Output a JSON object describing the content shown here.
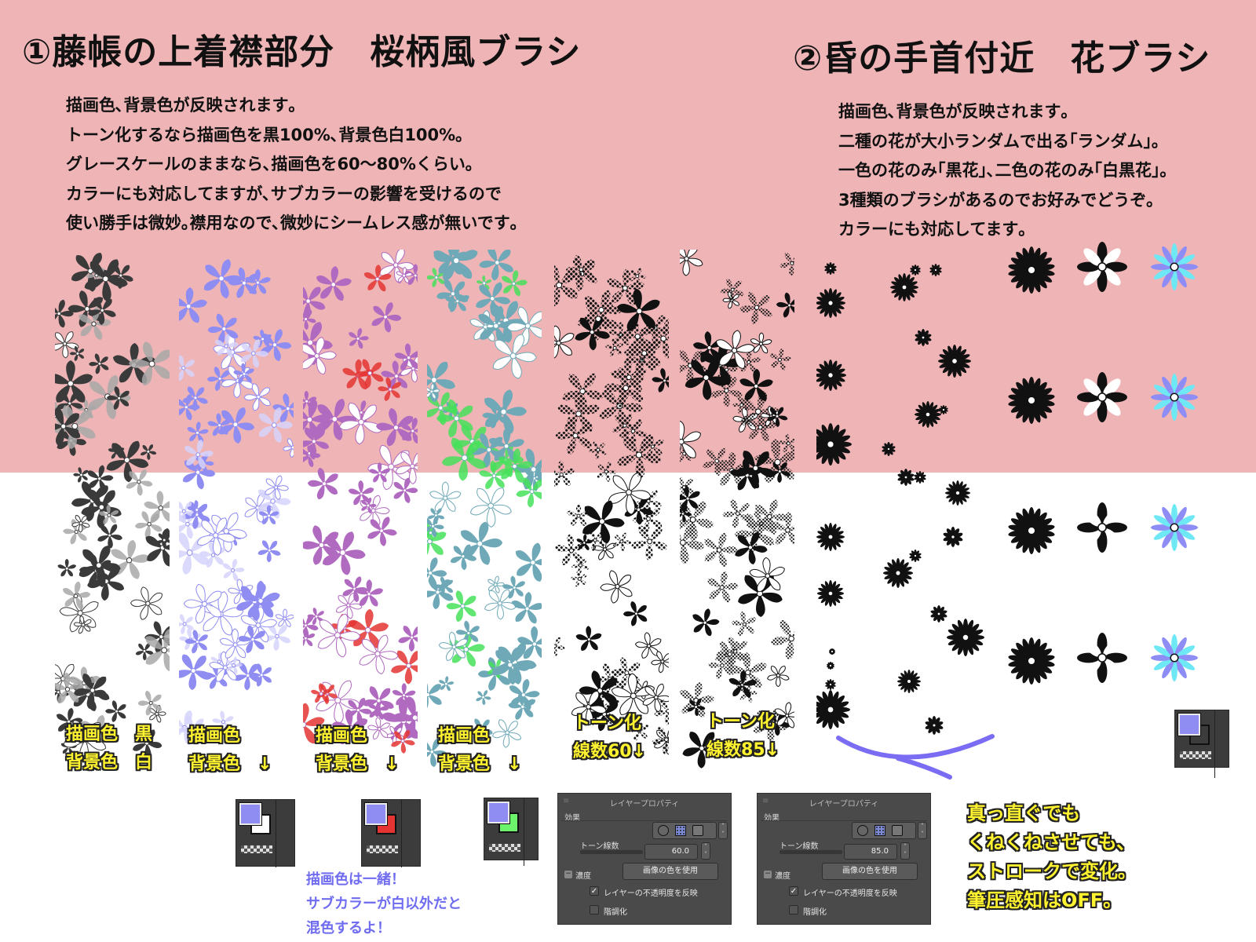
{
  "palette": {
    "band": "#eeb4b6",
    "paper": "#ffffff",
    "ink": "#111111",
    "label_yellow": "#fff330",
    "main_color": "#8f8cf2",
    "sub_red": "#e43533",
    "sub_green": "#6cf46c",
    "cyan_flower": "#6ee8f5",
    "violet_flower": "#8e8cf5",
    "stroke": "#7a6cf3",
    "note_violet": "#6f6cf0"
  },
  "section1": {
    "heading": "①藤帳の上着襟部分　桜柄風ブラシ",
    "lines": [
      "描画色､背景色が反映されます｡",
      "トーン化するなら描画色を黒100%､背景色白100%｡",
      "グレースケールのままなら､描画色を60〜80%くらい｡",
      "カラーにも対応してますが､サブカラーの影響を受けるので",
      "使い勝手は微妙｡襟用なので､微妙にシームレス感が無いです｡"
    ],
    "strips": [
      {
        "label_line1": "描画色　黒",
        "label_line2": "背景色　白",
        "main": "#3a3a3a",
        "sub": "#a8a8a8",
        "kind": "fill"
      },
      {
        "label_line1": "描画色",
        "label_line2": "背景色　↓",
        "main": "#8f8cf2",
        "sub": "#d6d4fb",
        "kind": "fill"
      },
      {
        "label_line1": "描画色",
        "label_line2": "背景色　↓",
        "main": "#b06ac0",
        "sub": "#e43533",
        "kind": "fill"
      },
      {
        "label_line1": "描画色",
        "label_line2": "背景色　↓",
        "main": "#6fa9b8",
        "sub": "#45e05a",
        "kind": "fill"
      },
      {
        "label_line1": "トーン化",
        "label_line2": "線数60↓",
        "main": "#111111",
        "sub": "#111111",
        "kind": "tone60"
      },
      {
        "label_line1": "トーン化",
        "label_line2": "線数85↓",
        "main": "#111111",
        "sub": "#111111",
        "kind": "tone85"
      }
    ],
    "swatches": [
      {
        "front": "#8f8cf2",
        "back": "#ffffff"
      },
      {
        "front": "#8f8cf2",
        "back": "#e43533"
      },
      {
        "front": "#8f8cf2",
        "back": "#6cf46c"
      }
    ],
    "mix_note": [
      "描画色は一緒！",
      "サブカラーが白以外だと",
      "混色するよ！"
    ],
    "panels": [
      {
        "title": "レイヤープロパティ",
        "effect": "効果",
        "tone_label": "トーン線数",
        "tone_value": "60.0",
        "density_label": "濃度",
        "density_select": "画像の色を使用",
        "opt_invert": "レイヤーの不透明度を反映",
        "opt_posterize": "階調化"
      },
      {
        "title": "レイヤープロパティ",
        "effect": "効果",
        "tone_label": "トーン線数",
        "tone_value": "85.0",
        "density_label": "濃度",
        "density_select": "画像の色を使用",
        "opt_invert": "レイヤーの不透明度を反映",
        "opt_posterize": "階調化"
      }
    ]
  },
  "section2": {
    "heading": "②昏の手首付近　花ブラシ",
    "lines": [
      "描画色､背景色が反映されます｡",
      "二種の花が大小ランダムで出る｢ランダム｣｡",
      "一色の花のみ｢黒花｣､二色の花のみ｢白黒花｣｡",
      "3種類のブラシがあるのでお好みでどうぞ｡",
      "カラーにも対応してます｡"
    ],
    "stroke_note": [
      "真っ直ぐでも",
      "くねくねさせても､",
      "ストロークで変化｡",
      "筆圧感知はOFF｡"
    ],
    "swatch": {
      "front": "#8f8cf2",
      "back": "#3c3c3c"
    }
  }
}
